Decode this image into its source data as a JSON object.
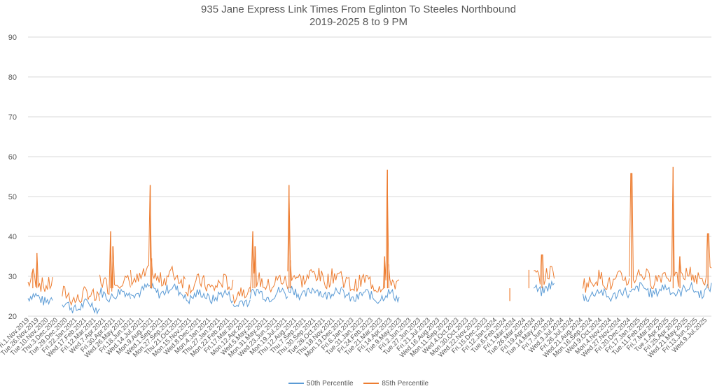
{
  "chart_data": {
    "type": "line",
    "title_line1": "935 Jane Express Link Times From Eglinton To Steeles Northbound",
    "title_line2": "2019-2025 8 to 9 PM",
    "xlabel": "",
    "ylabel": "",
    "ylim": [
      20,
      90
    ],
    "yticks": [
      20,
      30,
      40,
      50,
      60,
      70,
      80,
      90
    ],
    "grid": true,
    "legend_position": "bottom",
    "x_tick_labels": [
      "Fri.1.Nov.2019",
      "Tue.26.Nov.2019",
      "Tue.10.Nov.2020",
      "Thu.3.Dec.2020",
      "Tue.29.Dec.2020",
      "Fri.22.Jan.2021",
      "Wed.17.Feb.2021",
      "Fri.12.Mar.2021",
      "Wed.7.Apr.2021",
      "Fri.30.Apr.2021",
      "Wed.26.May.2021",
      "Fri.18.Jun.2021",
      "Wed.14.Jul.2021",
      "Mon.9.Aug.2021",
      "Wed.1.Sep.2021",
      "Mon.27.Sep.2021",
      "Thu.21.Oct.2021",
      "Mon.15.Nov.2021",
      "Wed.8.Dec.2021",
      "Mon.4.Jan.2021",
      "Thu.27.Jan.2021",
      "Mon.22.Feb.2021",
      "Fri.17.Mar.2021",
      "Mon.12.Apr.2021",
      "Wed.5.May.2021",
      "Mon.31.May.2021",
      "Wed.23.Jun.2021",
      "Mon.19.Jul.2021",
      "Thu.12.Aug.2021",
      "Thu.7.Sep.2021",
      "Thu.30.Sep.2021",
      "Tue.26.Oct.2021",
      "Thu.18.Nov.2021",
      "Mon.13.Dec.2021",
      "Fri.6.Jan.2023",
      "Tue.31.Jan.2023",
      "Fri.24.Feb.2023",
      "Tue.21.Mar.2023",
      "Fri.14.Apr.2023",
      "Tue.9.May.2023",
      "Fri.2.Jun.2023",
      "Tue.27.Jun.2023",
      "Fri.21.Jul.2023",
      "Wed.16.Aug.2023",
      "Mon.11.Sep.2023",
      "Wed.4.Oct.2023",
      "Mon.30.Oct.2023",
      "Wed.22.Nov.2023",
      "Fri.15.Dec.2023",
      "Fri.12.Jan.2024",
      "Tue.6.Feb.2024",
      "Fri.1.Mar.2024",
      "Tue.26.Mar.2024",
      "Fri.19.Apr.2024",
      "Tue.14.May.2024",
      "Fri.7.Jun.2024",
      "Wed.3.Jul.2024",
      "Fri.26.Jul.2024",
      "Wed.21.Aug.2024",
      "Mon.16.Sep.2024",
      "Wed.9.Oct.2024",
      "Mon.4.Nov.2024",
      "Wed.27.Nov.2024",
      "Fri.20.Dec.2024",
      "Fri.17.Jan.2025",
      "Tue.11.Feb.2025",
      "Fri.7.Mar.2025",
      "Tue.1.Apr.2025",
      "Fri.25.Apr.2025",
      "Wed.21.May.2025",
      "Fri.13.Jun.2025",
      "Wed.9.Jul.2025"
    ],
    "segments": [
      {
        "start": 0.0,
        "end": 0.036,
        "base50": 24.5,
        "base85": 27.5
      },
      {
        "start": 0.05,
        "end": 0.105,
        "base50": 22.5,
        "base85": 24.0
      },
      {
        "start": 0.105,
        "end": 0.15,
        "base50": 25.5,
        "base85": 27.5
      },
      {
        "start": 0.15,
        "end": 0.23,
        "base50": 26.5,
        "base85": 29.0
      },
      {
        "start": 0.23,
        "end": 0.3,
        "base50": 25.0,
        "base85": 27.0
      },
      {
        "start": 0.3,
        "end": 0.325,
        "base50": 23.0,
        "base85": 25.0
      },
      {
        "start": 0.325,
        "end": 0.38,
        "base50": 25.5,
        "base85": 27.5
      },
      {
        "start": 0.38,
        "end": 0.46,
        "base50": 26.0,
        "base85": 29.0
      },
      {
        "start": 0.46,
        "end": 0.543,
        "base50": 25.0,
        "base85": 27.5
      },
      {
        "start": 0.74,
        "end": 0.77,
        "base50": 27.0,
        "base85": 29.5
      },
      {
        "start": 0.812,
        "end": 0.88,
        "base50": 25.5,
        "base85": 28.0
      },
      {
        "start": 0.88,
        "end": 1.0,
        "base50": 26.5,
        "base85": 29.0
      }
    ],
    "spikes": [
      {
        "x": 0.007,
        "p85": 31.8
      },
      {
        "x": 0.013,
        "p85": 35.8
      },
      {
        "x": 0.121,
        "p85": 41.3
      },
      {
        "x": 0.124,
        "p85": 37.5
      },
      {
        "x": 0.179,
        "p85": 52.9
      },
      {
        "x": 0.181,
        "p85": 34.5
      },
      {
        "x": 0.329,
        "p85": 41.3
      },
      {
        "x": 0.332,
        "p85": 37.5
      },
      {
        "x": 0.382,
        "p85": 52.9
      },
      {
        "x": 0.384,
        "p85": 34.0
      },
      {
        "x": 0.522,
        "p85": 35.0
      },
      {
        "x": 0.526,
        "p85": 56.7
      },
      {
        "x": 0.528,
        "p85": 33.0
      },
      {
        "x": 0.705,
        "p85": 23.8
      },
      {
        "x": 0.733,
        "p85": 31.6
      },
      {
        "x": 0.752,
        "p85": 35.4
      },
      {
        "x": 0.883,
        "p85": 55.8
      },
      {
        "x": 0.944,
        "p85": 57.4
      },
      {
        "x": 0.954,
        "p85": 35.0
      },
      {
        "x": 0.995,
        "p85": 40.7
      }
    ],
    "series": [
      {
        "name": "50th Percentile",
        "color": "#5B9BD5"
      },
      {
        "name": "85th Percentile",
        "color": "#ED7D31"
      }
    ]
  }
}
